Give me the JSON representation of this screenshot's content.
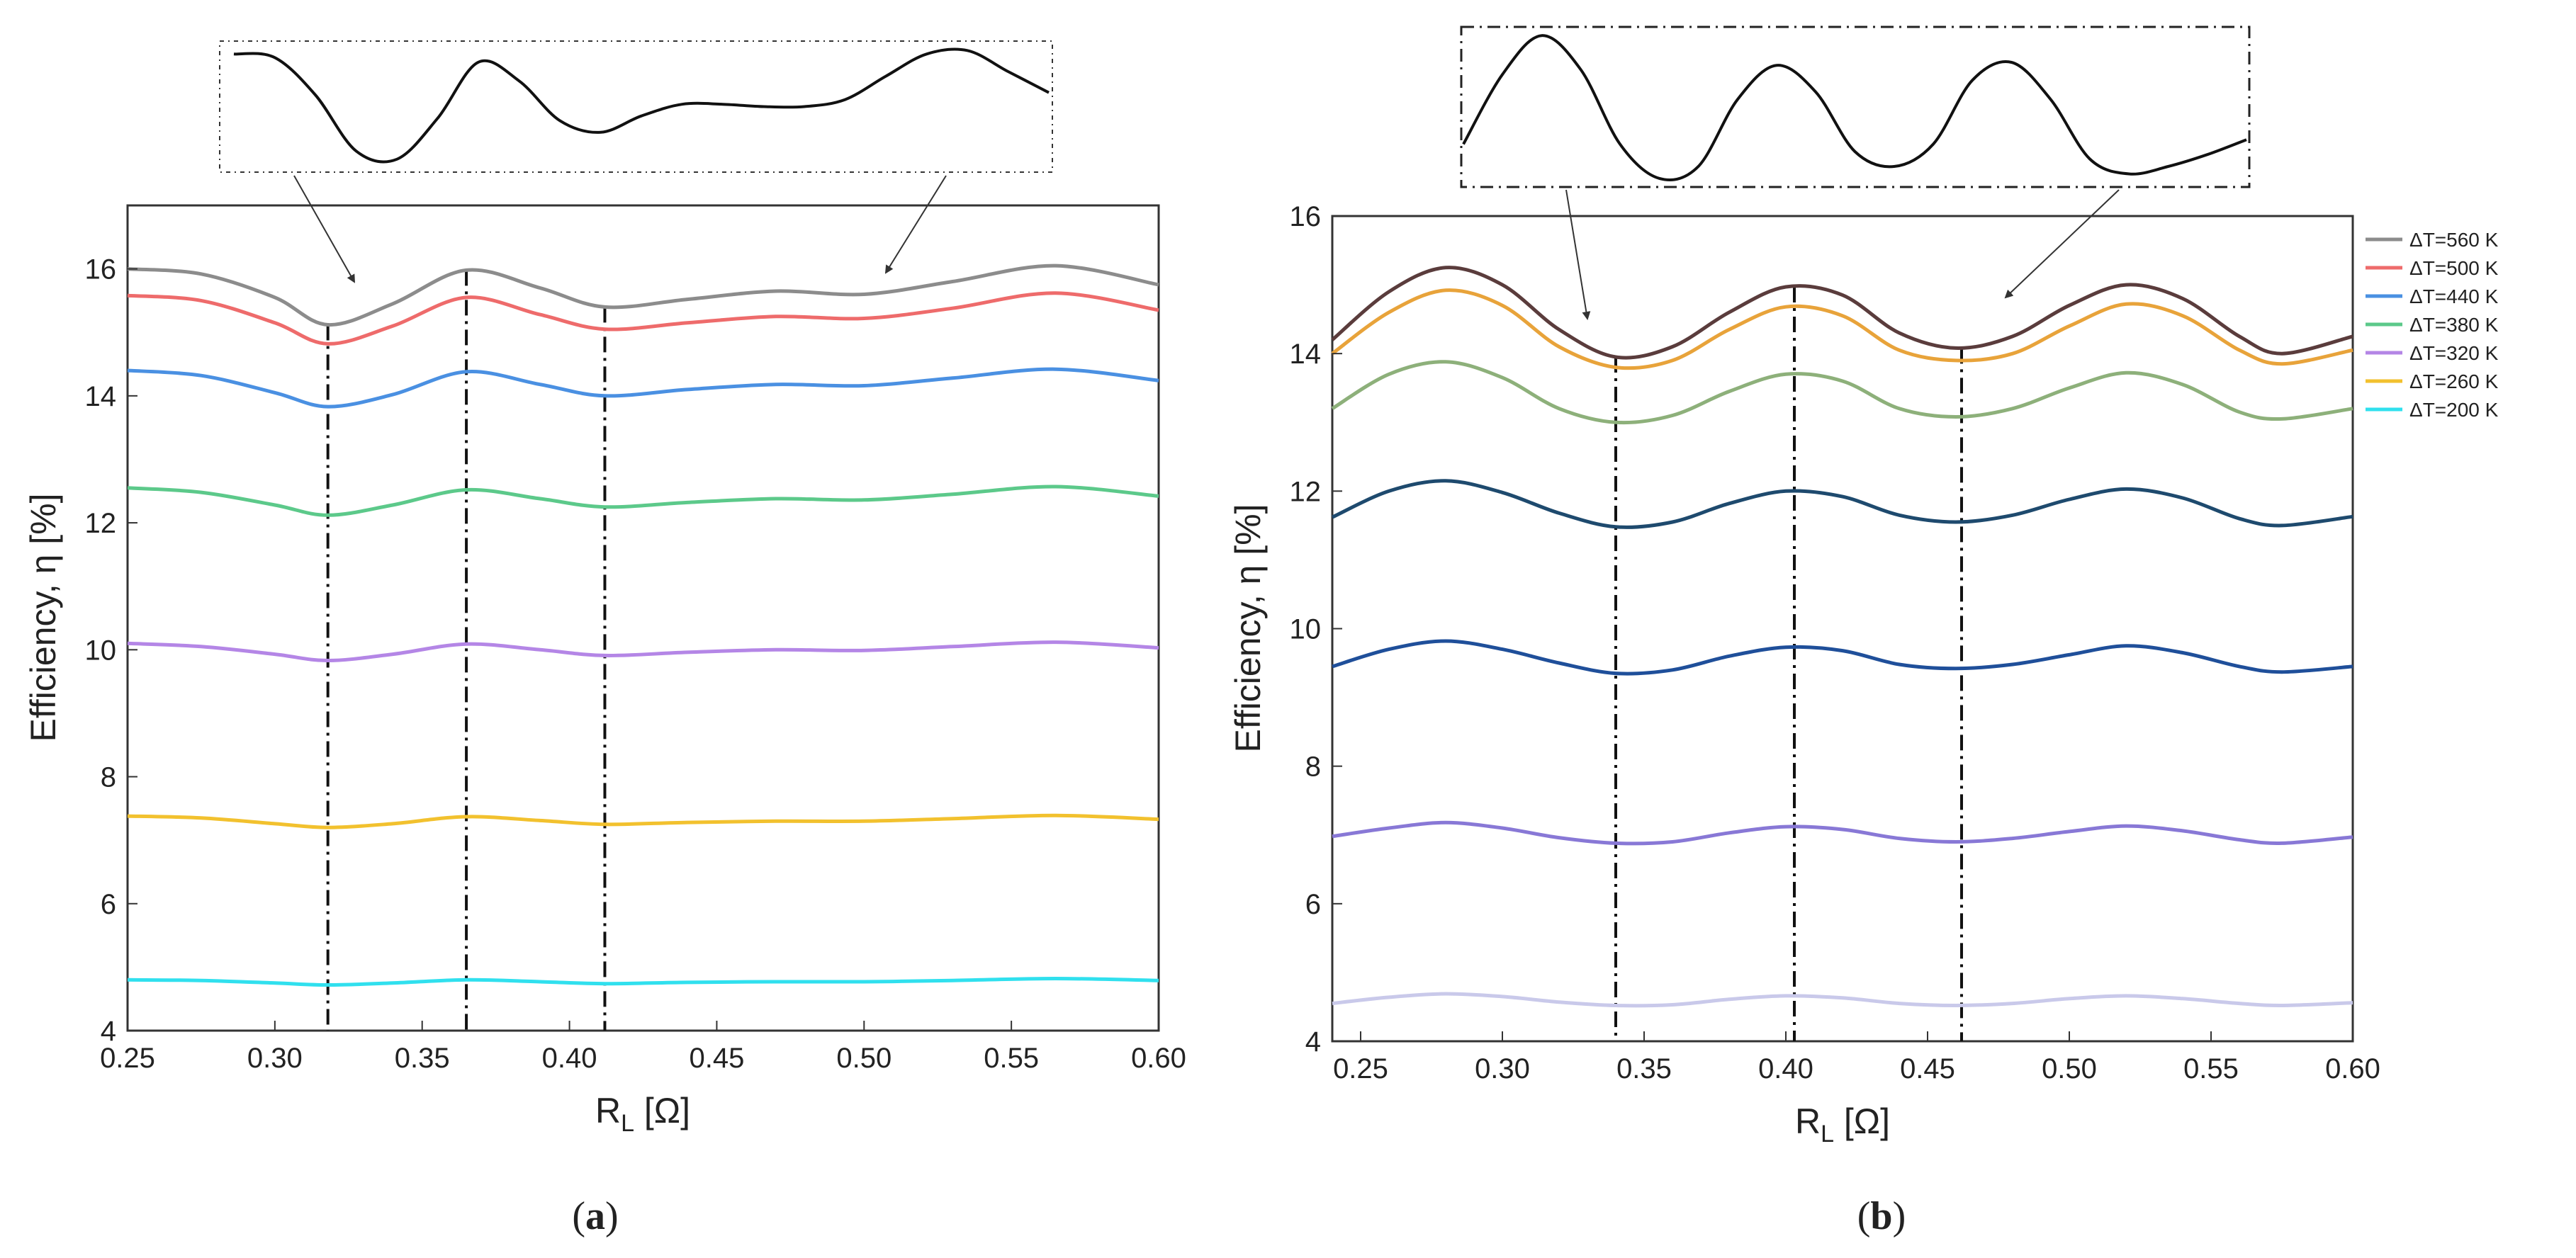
{
  "figure": {
    "caption_a": {
      "open": "(",
      "letter": "a",
      "close": ")"
    },
    "caption_b": {
      "open": "(",
      "letter": "b",
      "close": ")"
    }
  },
  "chart_data": [
    {
      "id": "a",
      "type": "line",
      "title": "",
      "xlabel": {
        "main": "R",
        "sub": "L",
        "unit": " [Ω]"
      },
      "ylabel": "Efficiency, η [%]",
      "xlim": [
        0.25,
        0.6
      ],
      "ylim": [
        4,
        17
      ],
      "xticks": [
        0.25,
        0.3,
        0.35,
        0.4,
        0.45,
        0.5,
        0.55,
        0.6
      ],
      "xtick_labels": [
        "0.25",
        "0.30",
        "0.35",
        "0.40",
        "0.45",
        "0.50",
        "0.55",
        "0.60"
      ],
      "yticks": [
        4,
        6,
        8,
        10,
        12,
        14,
        16
      ],
      "ytick_labels": [
        "4",
        "6",
        "8",
        "10",
        "12",
        "14",
        "16"
      ],
      "x": [
        0.25,
        0.275,
        0.3,
        0.318,
        0.34,
        0.365,
        0.39,
        0.412,
        0.44,
        0.47,
        0.5,
        0.53,
        0.565,
        0.6
      ],
      "series": [
        {
          "name": "ΔT=560 K",
          "color": "#8c8c8c",
          "values": [
            16.0,
            15.92,
            15.55,
            15.12,
            15.45,
            15.98,
            15.7,
            15.4,
            15.52,
            15.65,
            15.6,
            15.8,
            16.05,
            15.75
          ]
        },
        {
          "name": "ΔT=500 K",
          "color": "#ee6b6b",
          "values": [
            15.58,
            15.5,
            15.15,
            14.82,
            15.1,
            15.55,
            15.28,
            15.05,
            15.15,
            15.25,
            15.22,
            15.38,
            15.62,
            15.35
          ]
        },
        {
          "name": "ΔT=440 K",
          "color": "#4a90e2",
          "values": [
            14.4,
            14.32,
            14.05,
            13.83,
            14.02,
            14.38,
            14.18,
            14.0,
            14.1,
            14.18,
            14.16,
            14.28,
            14.42,
            14.24
          ]
        },
        {
          "name": "ΔT=380 K",
          "color": "#5cc98a",
          "values": [
            12.55,
            12.48,
            12.28,
            12.12,
            12.28,
            12.52,
            12.38,
            12.25,
            12.32,
            12.38,
            12.36,
            12.45,
            12.57,
            12.42
          ]
        },
        {
          "name": "ΔT=320 K",
          "color": "#b486e6",
          "values": [
            10.1,
            10.05,
            9.93,
            9.83,
            9.93,
            10.09,
            10.0,
            9.91,
            9.96,
            10.0,
            9.99,
            10.05,
            10.12,
            10.03
          ]
        },
        {
          "name": "ΔT=260 K",
          "color": "#f2c12e",
          "values": [
            7.38,
            7.35,
            7.26,
            7.2,
            7.26,
            7.37,
            7.31,
            7.25,
            7.28,
            7.3,
            7.3,
            7.34,
            7.39,
            7.33
          ]
        },
        {
          "name": "ΔT=200 K",
          "color": "#30e0ee",
          "values": [
            4.8,
            4.79,
            4.75,
            4.72,
            4.75,
            4.8,
            4.77,
            4.74,
            4.76,
            4.77,
            4.77,
            4.79,
            4.82,
            4.79
          ]
        }
      ],
      "vlines": [
        0.318,
        0.365,
        0.412
      ],
      "inset_x": [
        0.0,
        0.05,
        0.1,
        0.15,
        0.2,
        0.25,
        0.3,
        0.35,
        0.4,
        0.45,
        0.5,
        0.55,
        0.6,
        0.65,
        0.7,
        0.75,
        0.8,
        0.85,
        0.9,
        0.95,
        1.0
      ],
      "inset_y": [
        0.95,
        0.92,
        0.6,
        0.12,
        0.05,
        0.4,
        0.88,
        0.72,
        0.38,
        0.28,
        0.42,
        0.52,
        0.52,
        0.5,
        0.5,
        0.56,
        0.76,
        0.95,
        0.98,
        0.8,
        0.62
      ]
    },
    {
      "id": "b",
      "type": "line",
      "title": "",
      "xlabel": {
        "main": "R",
        "sub": "L",
        "unit": " [Ω]"
      },
      "ylabel": "Efficiency, η [%]",
      "xlim": [
        0.24,
        0.6
      ],
      "ylim": [
        4,
        16
      ],
      "xticks": [
        0.25,
        0.3,
        0.35,
        0.4,
        0.45,
        0.5,
        0.55,
        0.6
      ],
      "xtick_labels": [
        "0.25",
        "0.30",
        "0.35",
        "0.40",
        "0.45",
        "0.50",
        "0.55",
        "0.60"
      ],
      "yticks": [
        4,
        6,
        8,
        10,
        12,
        14,
        16
      ],
      "ytick_labels": [
        "4",
        "6",
        "8",
        "10",
        "12",
        "14",
        "16"
      ],
      "x": [
        0.24,
        0.26,
        0.28,
        0.3,
        0.32,
        0.34,
        0.36,
        0.38,
        0.4,
        0.42,
        0.44,
        0.46,
        0.48,
        0.5,
        0.52,
        0.54,
        0.56,
        0.575,
        0.6
      ],
      "series": [
        {
          "name": "ΔT=560 K",
          "color": "#5a3c3c",
          "values": [
            14.2,
            14.9,
            15.25,
            15.0,
            14.35,
            13.95,
            14.1,
            14.6,
            14.97,
            14.85,
            14.3,
            14.08,
            14.25,
            14.7,
            15.0,
            14.8,
            14.25,
            14.0,
            14.25
          ]
        },
        {
          "name": "ΔT=500 K",
          "color": "#e8a33a",
          "values": [
            14.0,
            14.6,
            14.92,
            14.7,
            14.1,
            13.8,
            13.9,
            14.35,
            14.68,
            14.55,
            14.05,
            13.9,
            14.0,
            14.4,
            14.72,
            14.55,
            14.05,
            13.85,
            14.05
          ]
        },
        {
          "name": "ΔT=440 K",
          "color": "#8db07a",
          "values": [
            13.2,
            13.7,
            13.88,
            13.65,
            13.2,
            13.0,
            13.1,
            13.45,
            13.7,
            13.6,
            13.2,
            13.08,
            13.2,
            13.5,
            13.72,
            13.55,
            13.15,
            13.05,
            13.2
          ]
        },
        {
          "name": "ΔT=380 K",
          "color": "#1e4a6e",
          "values": [
            11.62,
            12.0,
            12.15,
            11.98,
            11.68,
            11.48,
            11.55,
            11.82,
            12.0,
            11.92,
            11.65,
            11.55,
            11.65,
            11.88,
            12.03,
            11.9,
            11.6,
            11.5,
            11.63
          ]
        },
        {
          "name": "ΔT=320 K",
          "color": "#1f4f9a",
          "values": [
            9.45,
            9.7,
            9.82,
            9.7,
            9.5,
            9.35,
            9.4,
            9.6,
            9.73,
            9.68,
            9.48,
            9.42,
            9.48,
            9.62,
            9.75,
            9.65,
            9.45,
            9.37,
            9.45
          ]
        },
        {
          "name": "ΔT=260 K",
          "color": "#8878d6",
          "values": [
            6.98,
            7.1,
            7.18,
            7.1,
            6.96,
            6.88,
            6.9,
            7.03,
            7.12,
            7.08,
            6.95,
            6.9,
            6.95,
            7.05,
            7.13,
            7.06,
            6.93,
            6.88,
            6.97
          ]
        },
        {
          "name": "ΔT=200 K",
          "color": "#c9c9ea",
          "values": [
            4.55,
            4.64,
            4.69,
            4.65,
            4.57,
            4.52,
            4.53,
            4.61,
            4.66,
            4.63,
            4.55,
            4.52,
            4.55,
            4.62,
            4.66,
            4.62,
            4.55,
            4.52,
            4.56
          ]
        }
      ],
      "vlines": [
        0.34,
        0.403,
        0.462
      ],
      "inset_x": [
        0.0,
        0.05,
        0.1,
        0.15,
        0.2,
        0.25,
        0.3,
        0.35,
        0.4,
        0.45,
        0.5,
        0.55,
        0.6,
        0.65,
        0.7,
        0.75,
        0.8,
        0.85,
        0.9,
        0.95,
        1.0
      ],
      "inset_y": [
        0.25,
        0.72,
        0.98,
        0.75,
        0.25,
        0.02,
        0.1,
        0.55,
        0.78,
        0.6,
        0.2,
        0.1,
        0.25,
        0.68,
        0.8,
        0.55,
        0.15,
        0.05,
        0.1,
        0.18,
        0.28
      ],
      "legend": {
        "position": "right",
        "entries": [
          {
            "label": "ΔT=560 K",
            "color": "#8c8c8c"
          },
          {
            "label": "ΔT=500 K",
            "color": "#ee6b6b"
          },
          {
            "label": "ΔT=440 K",
            "color": "#4a90e2"
          },
          {
            "label": "ΔT=380 K",
            "color": "#5cc98a"
          },
          {
            "label": "ΔT=320 K",
            "color": "#b486e6"
          },
          {
            "label": "ΔT=260 K",
            "color": "#f2c12e"
          },
          {
            "label": "ΔT=200 K",
            "color": "#30e0ee"
          }
        ]
      }
    }
  ]
}
